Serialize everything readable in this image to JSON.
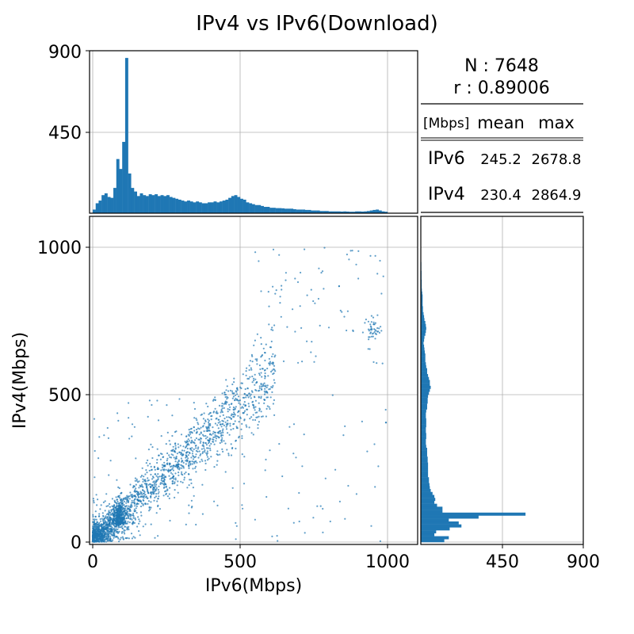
{
  "title": "IPv4 vs IPv6(Download)",
  "chart_data": {
    "type": "scatter",
    "x_label": "IPv6(Mbps)",
    "y_label": "IPv4(Mbps)",
    "x_ticks": [
      "0",
      "500",
      "1000"
    ],
    "y_ticks": [
      "0",
      "500",
      "1000"
    ],
    "x_range": [
      -5,
      1105
    ],
    "y_range": [
      -5,
      1105
    ],
    "grid": true,
    "marker_color": "#1f77b4",
    "point_count": 7648,
    "correlation": 0.89006,
    "top_hist": {
      "type": "bar",
      "xlabel": "IPv6(Mbps)",
      "y_ticks": [
        "450",
        "900"
      ],
      "ylim": [
        0,
        900
      ],
      "bin_width_mbps": 10,
      "bin_start_mbps": 0,
      "counts": [
        20,
        55,
        70,
        100,
        110,
        90,
        85,
        140,
        300,
        245,
        395,
        860,
        220,
        140,
        120,
        95,
        110,
        100,
        95,
        105,
        100,
        105,
        95,
        100,
        95,
        100,
        90,
        85,
        80,
        75,
        70,
        65,
        70,
        65,
        60,
        65,
        60,
        55,
        55,
        60,
        60,
        65,
        60,
        65,
        70,
        75,
        85,
        95,
        100,
        90,
        80,
        75,
        60,
        55,
        50,
        45,
        45,
        40,
        35,
        35,
        30,
        30,
        28,
        28,
        27,
        25,
        25,
        25,
        22,
        20,
        20,
        20,
        18,
        18,
        15,
        15,
        15,
        12,
        12,
        12,
        10,
        10,
        10,
        10,
        9,
        10,
        9,
        8,
        8,
        10,
        10,
        9,
        10,
        12,
        15,
        18,
        20,
        15,
        10,
        8
      ]
    },
    "right_hist": {
      "type": "bar",
      "orientation": "horizontal",
      "ylabel": "IPv4(Mbps)",
      "x_ticks": [
        "450",
        "900"
      ],
      "xlim": [
        0,
        900
      ],
      "bin_width_mbps": 10,
      "bin_start_mbps": 0,
      "counts": [
        130,
        155,
        75,
        85,
        160,
        225,
        210,
        155,
        320,
        580,
        120,
        120,
        90,
        75,
        80,
        75,
        65,
        55,
        50,
        48,
        45,
        45,
        40,
        40,
        40,
        40,
        40,
        38,
        38,
        35,
        35,
        35,
        30,
        28,
        28,
        30,
        30,
        28,
        28,
        30,
        30,
        30,
        28,
        28,
        30,
        35,
        35,
        38,
        38,
        40,
        45,
        50,
        55,
        50,
        50,
        45,
        40,
        35,
        35,
        30,
        28,
        25,
        25,
        25,
        22,
        20,
        18,
        15,
        18,
        20,
        25,
        28,
        30,
        28,
        25,
        20,
        18,
        15,
        12,
        12,
        10,
        10,
        10,
        10,
        8,
        6,
        5,
        5,
        5,
        4,
        4,
        4,
        3,
        3,
        3,
        2,
        2,
        2,
        1,
        1
      ]
    },
    "stats_table": {
      "n_line": "N : 7648",
      "r_line": "r : 0.89006",
      "unit": "[Mbps]",
      "columns": [
        "mean",
        "max"
      ],
      "rows": [
        {
          "label": "IPv6",
          "mean": "245.2",
          "max": "2678.8"
        },
        {
          "label": "IPv4",
          "mean": "230.4",
          "max": "2864.9"
        }
      ]
    }
  }
}
